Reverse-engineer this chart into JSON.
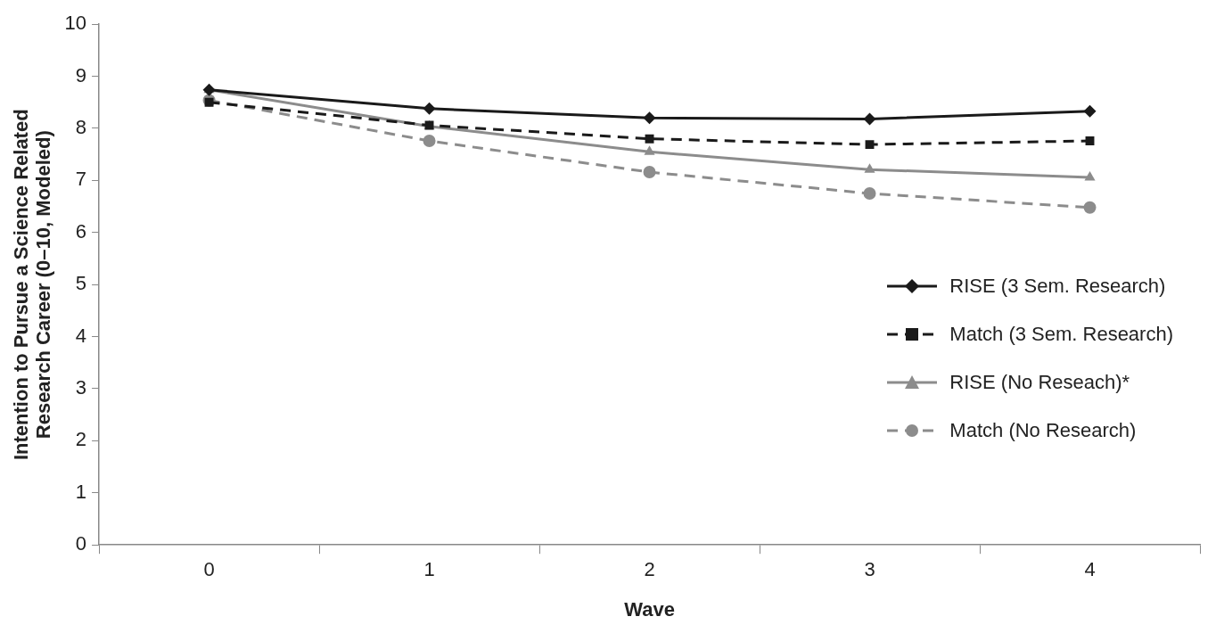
{
  "chart_data": {
    "type": "line",
    "xlabel": "Wave",
    "ylabel": "Intention to Pursue a Science Related Research Career (0–10, Modeled)",
    "categories": [
      "0",
      "1",
      "2",
      "3",
      "4"
    ],
    "ylim": [
      0,
      10
    ],
    "yticks": [
      0,
      1,
      2,
      3,
      4,
      5,
      6,
      7,
      8,
      9,
      10
    ],
    "grid": false,
    "legend": "right",
    "series": [
      {
        "name": "RISE (3 Sem. Research)",
        "color": "#1a1a1a",
        "marker": "diamond",
        "line_style": "solid",
        "values": [
          8.74,
          8.38,
          8.2,
          8.18,
          8.33
        ]
      },
      {
        "name": "Match (3 Sem. Research)",
        "color": "#1a1a1a",
        "marker": "square",
        "line_style": "dashed",
        "values": [
          8.5,
          8.06,
          7.8,
          7.69,
          7.76
        ]
      },
      {
        "name": "RISE (No Reseach)*",
        "color": "#8c8c8c",
        "marker": "triangle",
        "line_style": "solid",
        "values": [
          8.74,
          8.04,
          7.55,
          7.21,
          7.06
        ]
      },
      {
        "name": "Match (No Research)",
        "color": "#8c8c8c",
        "marker": "circle",
        "line_style": "dashed",
        "values": [
          8.54,
          7.76,
          7.16,
          6.75,
          6.48
        ]
      }
    ]
  }
}
